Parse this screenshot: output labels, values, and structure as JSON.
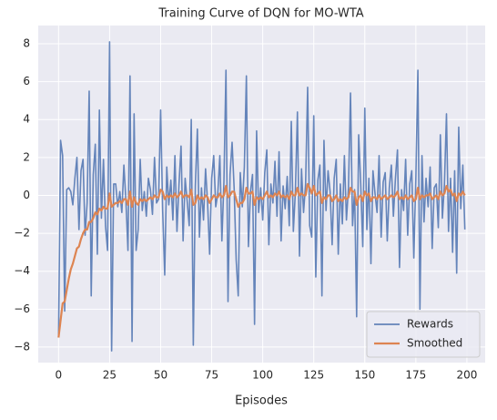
{
  "chart_data": {
    "type": "line",
    "title": "Training Curve of DQN for MO-WTA",
    "xlabel": "Episodes",
    "x": [
      0,
      1,
      2,
      3,
      4,
      5,
      6,
      7,
      8,
      9,
      10,
      11,
      12,
      13,
      14,
      15,
      16,
      17,
      18,
      19,
      20,
      21,
      22,
      23,
      24,
      25,
      26,
      27,
      28,
      29,
      30,
      31,
      32,
      33,
      34,
      35,
      36,
      37,
      38,
      39,
      40,
      41,
      42,
      43,
      44,
      45,
      46,
      47,
      48,
      49,
      50,
      51,
      52,
      53,
      54,
      55,
      56,
      57,
      58,
      59,
      60,
      61,
      62,
      63,
      64,
      65,
      66,
      67,
      68,
      69,
      70,
      71,
      72,
      73,
      74,
      75,
      76,
      77,
      78,
      79,
      80,
      81,
      82,
      83,
      84,
      85,
      86,
      87,
      88,
      89,
      90,
      91,
      92,
      93,
      94,
      95,
      96,
      97,
      98,
      99,
      100,
      101,
      102,
      103,
      104,
      105,
      106,
      107,
      108,
      109,
      110,
      111,
      112,
      113,
      114,
      115,
      116,
      117,
      118,
      119,
      120,
      121,
      122,
      123,
      124,
      125,
      126,
      127,
      128,
      129,
      130,
      131,
      132,
      133,
      134,
      135,
      136,
      137,
      138,
      139,
      140,
      141,
      142,
      143,
      144,
      145,
      146,
      147,
      148,
      149,
      150,
      151,
      152,
      153,
      154,
      155,
      156,
      157,
      158,
      159,
      160,
      161,
      162,
      163,
      164,
      165,
      166,
      167,
      168,
      169,
      170,
      171,
      172,
      173,
      174,
      175,
      176,
      177,
      178,
      179,
      180,
      181,
      182,
      183,
      184,
      185,
      186,
      187,
      188,
      189,
      190,
      191,
      192,
      193,
      194,
      195,
      196,
      197,
      198,
      199
    ],
    "series": [
      {
        "name": "Rewards",
        "color": "#4c72b0",
        "values": [
          -7.5,
          2.9,
          2.1,
          -6.1,
          0.3,
          0.4,
          0.2,
          -0.5,
          0.9,
          2.0,
          -1.8,
          1.3,
          1.9,
          -2.1,
          -0.4,
          5.5,
          -5.3,
          1.1,
          2.7,
          -3.1,
          4.5,
          -1.2,
          1.9,
          -1.6,
          -2.9,
          8.1,
          -8.2,
          0.6,
          0.6,
          -0.6,
          0.2,
          -0.9,
          1.6,
          -0.3,
          -2.9,
          6.3,
          -7.7,
          4.3,
          -2.9,
          -1.8,
          1.9,
          -0.8,
          0.2,
          -1.1,
          0.9,
          0.3,
          -1.0,
          2.0,
          -0.4,
          -0.2,
          4.5,
          -0.8,
          -4.2,
          1.5,
          -0.5,
          0.8,
          -1.3,
          2.1,
          -1.9,
          0.6,
          2.6,
          -2.4,
          0.9,
          -0.3,
          -1.6,
          4.0,
          -7.9,
          0.5,
          3.5,
          -2.2,
          0.4,
          -1.3,
          1.4,
          -0.4,
          -3.1,
          0.9,
          2.1,
          -0.6,
          0.1,
          2.1,
          -2.4,
          0.7,
          6.6,
          -5.6,
          1.1,
          2.8,
          0.4,
          -3.4,
          -5.3,
          1.2,
          -0.6,
          1.5,
          6.3,
          -2.7,
          0.2,
          1.1,
          -6.8,
          3.4,
          -0.9,
          0.4,
          -1.3,
          1.2,
          2.4,
          -2.6,
          0.6,
          -0.4,
          1.8,
          -1.1,
          2.3,
          -2.4,
          0.5,
          -0.7,
          1.0,
          -1.6,
          3.9,
          -1.9,
          0.2,
          4.4,
          -3.2,
          1.4,
          -0.9,
          0.6,
          5.7,
          -1.6,
          -2.2,
          4.2,
          -4.3,
          0.8,
          1.6,
          -5.3,
          2.9,
          -0.8,
          1.3,
          0.2,
          -2.6,
          0.9,
          1.9,
          -3.1,
          0.6,
          -1.5,
          2.1,
          -1.3,
          0.4,
          5.4,
          -1.6,
          0.3,
          -6.4,
          3.2,
          0.6,
          -2.7,
          4.6,
          -1.8,
          0.9,
          -3.6,
          1.3,
          0.1,
          -0.9,
          2.1,
          -2.2,
          0.7,
          1.2,
          -2.4,
          0.4,
          1.6,
          -1.1,
          0.9,
          2.4,
          -3.8,
          0.3,
          -0.8,
          1.9,
          -2.1,
          0.6,
          1.3,
          -3.3,
          0.9,
          6.6,
          -6.0,
          2.1,
          -1.4,
          0.9,
          -0.6,
          1.5,
          -2.8,
          0.4,
          0.6,
          -1.7,
          3.2,
          -1.2,
          0.6,
          4.3,
          -1.9,
          0.9,
          -3.0,
          1.3,
          -4.1,
          3.6,
          -0.7,
          1.6,
          -1.8
        ]
      },
      {
        "name": "Smoothed",
        "color": "#dd8452",
        "values": [
          -7.5,
          -6.6,
          -5.7,
          -5.6,
          -5.0,
          -4.4,
          -3.9,
          -3.6,
          -3.2,
          -2.8,
          -2.7,
          -2.3,
          -2.0,
          -1.8,
          -1.8,
          -1.4,
          -1.4,
          -1.2,
          -0.9,
          -1.0,
          -0.7,
          -0.8,
          -0.6,
          -0.7,
          -0.7,
          0.1,
          -0.6,
          -0.5,
          -0.4,
          -0.4,
          -0.3,
          -0.4,
          -0.2,
          -0.2,
          -0.5,
          0.2,
          -0.6,
          -0.1,
          -0.4,
          -0.5,
          -0.2,
          -0.3,
          -0.2,
          -0.3,
          -0.2,
          -0.1,
          -0.2,
          0.0,
          -0.1,
          -0.1,
          0.3,
          0.2,
          -0.2,
          0.0,
          -0.1,
          0.0,
          -0.1,
          0.1,
          -0.1,
          0.0,
          0.2,
          -0.1,
          0.0,
          0.0,
          -0.1,
          0.3,
          -0.5,
          -0.4,
          0.0,
          -0.2,
          -0.1,
          -0.2,
          0.0,
          -0.1,
          -0.4,
          -0.2,
          0.0,
          -0.1,
          -0.1,
          0.1,
          -0.1,
          0.0,
          0.5,
          -0.1,
          0.0,
          0.2,
          0.2,
          -0.2,
          -0.6,
          -0.4,
          -0.4,
          -0.2,
          0.4,
          0.1,
          0.1,
          0.2,
          -0.5,
          -0.1,
          -0.2,
          -0.1,
          -0.2,
          0.0,
          0.2,
          -0.1,
          0.0,
          -0.1,
          0.1,
          0.0,
          0.2,
          -0.1,
          0.0,
          -0.1,
          0.0,
          -0.2,
          0.2,
          0.0,
          0.0,
          0.4,
          0.0,
          0.1,
          0.0,
          0.0,
          0.6,
          0.4,
          0.1,
          0.5,
          0.0,
          0.1,
          0.2,
          -0.4,
          -0.1,
          -0.2,
          0.0,
          0.0,
          -0.3,
          -0.2,
          0.0,
          -0.3,
          -0.2,
          -0.3,
          -0.1,
          -0.2,
          -0.1,
          0.4,
          0.2,
          0.2,
          -0.5,
          -0.1,
          0.0,
          -0.3,
          0.2,
          0.0,
          0.1,
          -0.3,
          -0.1,
          -0.1,
          -0.2,
          0.0,
          -0.2,
          -0.1,
          0.0,
          -0.2,
          -0.1,
          0.0,
          -0.1,
          0.0,
          0.2,
          -0.2,
          -0.1,
          -0.2,
          0.0,
          -0.2,
          -0.1,
          0.0,
          -0.3,
          -0.2,
          0.4,
          -0.2,
          0.0,
          -0.1,
          0.0,
          0.0,
          0.1,
          -0.2,
          -0.1,
          0.0,
          -0.2,
          0.2,
          0.0,
          0.1,
          0.5,
          0.2,
          0.3,
          0.0,
          0.1,
          -0.3,
          0.1,
          0.0,
          0.2,
          0.0
        ]
      }
    ],
    "xlim": [
      -9.95,
      208.95
    ],
    "xticks": [
      0,
      25,
      50,
      75,
      100,
      125,
      150,
      175,
      200
    ],
    "ylim": [
      -8.82,
      8.96
    ],
    "yticks": [
      {
        "value": -8,
        "label": "−8"
      },
      {
        "value": -6,
        "label": "−6"
      },
      {
        "value": -4,
        "label": "−4"
      },
      {
        "value": -2,
        "label": "−2"
      },
      0,
      2,
      4,
      6,
      8
    ],
    "grid": true,
    "legend": "lower right"
  }
}
